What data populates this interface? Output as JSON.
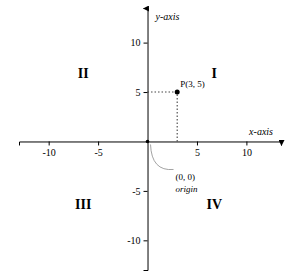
{
  "chart_data": {
    "type": "scatter",
    "x": [
      3
    ],
    "values": [
      5
    ],
    "xlim": [
      -13,
      13.5
    ],
    "ylim": [
      -13,
      13.5
    ],
    "xticks": [
      -10,
      -5,
      5,
      10
    ],
    "yticks": [
      -10,
      -5,
      5,
      10
    ],
    "xlabel": "x-axis",
    "ylabel": "y-axis",
    "color": "#000000",
    "annotations": {
      "point": "P(3, 5)",
      "origin": "(0, 0)",
      "origin_note": "origin",
      "quadrants": [
        "I",
        "II",
        "III",
        "IV"
      ]
    }
  }
}
